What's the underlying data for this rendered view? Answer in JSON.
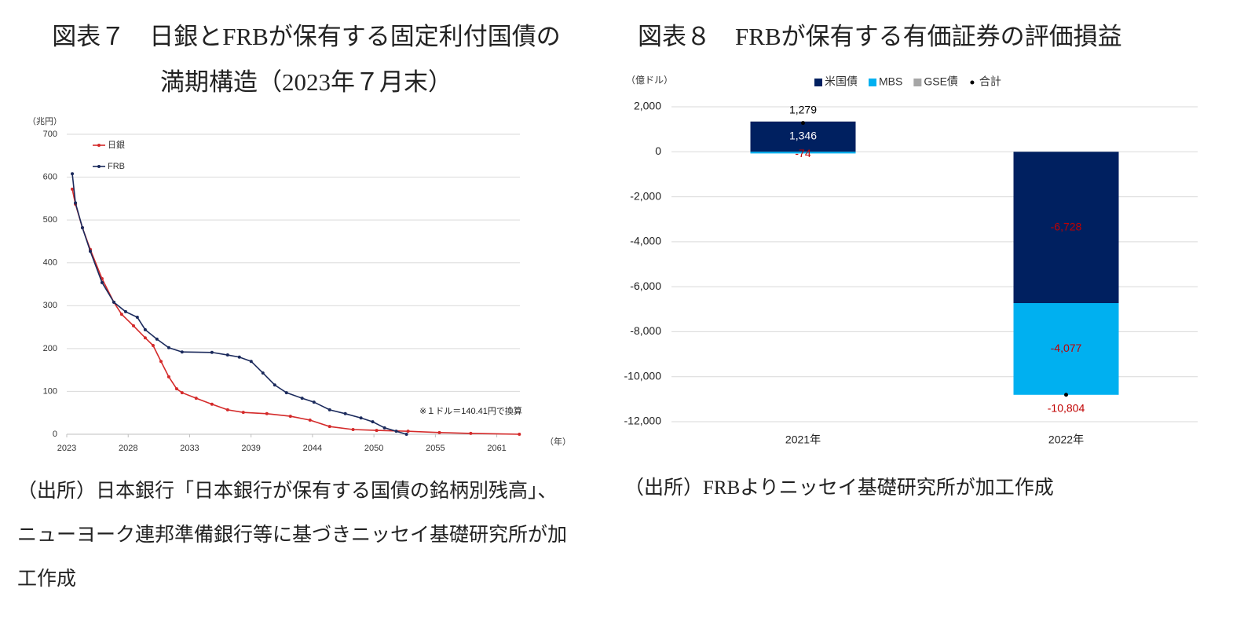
{
  "chart_data": [
    {
      "type": "line",
      "title": "図表７　日銀とFRBが保有する固定利付国債の満期構造（2023年７月末）",
      "y_label": "（兆円）",
      "x_label": "（年）",
      "annotation": "※１ドル＝140.41円で換算",
      "source": "（出所）日本銀行「日本銀行が保有する国債の銘柄別残高」、ニューヨーク連邦準備銀行等に基づきニッセイ基礎研究所が加工作成",
      "xlim": [
        2023,
        2063.2
      ],
      "xticks": [
        2023,
        {
          "value": 2028.45,
          "label": "2028"
        },
        {
          "value": 2033.9,
          "label": "2033"
        },
        {
          "value": 2039.35,
          "label": "2039"
        },
        {
          "value": 2044.8,
          "label": "2044"
        },
        {
          "value": 2050.25,
          "label": "2050"
        },
        {
          "value": 2055.7,
          "label": "2055"
        },
        {
          "value": 2061.15,
          "label": "2061"
        }
      ],
      "ylim": [
        0,
        700
      ],
      "yticks": [
        0,
        100,
        200,
        300,
        400,
        500,
        600,
        700
      ],
      "grid": true,
      "legend": "upper left",
      "series": [
        {
          "name": "日銀",
          "color": "#d42a2a",
          "x": [
            2023.49,
            2023.77,
            2024.39,
            2025.09,
            2026.13,
            2027.18,
            2027.87,
            2028.92,
            2029.96,
            2030.66,
            2031.36,
            2032.05,
            2032.75,
            2033.23,
            2034.48,
            2035.88,
            2037.27,
            2038.66,
            2040.75,
            2042.84,
            2044.58,
            2046.32,
            2048.4,
            2050.49,
            2053.28,
            2056.06,
            2058.84,
            2063.15
          ],
          "values": [
            572,
            537,
            482,
            431,
            363,
            308,
            280,
            253,
            225,
            207,
            170,
            134,
            106,
            97,
            84,
            70,
            57,
            51,
            48,
            42,
            33,
            18,
            11,
            9,
            7,
            4,
            2,
            0
          ]
        },
        {
          "name": "FRB",
          "color": "#1b2a5c",
          "x": [
            2023.49,
            2023.77,
            2024.39,
            2025.09,
            2026.13,
            2027.18,
            2028.22,
            2029.26,
            2029.96,
            2031.0,
            2032.05,
            2033.23,
            2035.88,
            2037.27,
            2038.31,
            2039.36,
            2040.4,
            2041.45,
            2042.49,
            2043.88,
            2044.93,
            2046.32,
            2047.71,
            2049.1,
            2050.14,
            2051.19,
            2052.23,
            2053.14
          ],
          "values": [
            608,
            540,
            482,
            427,
            354,
            308,
            286,
            273,
            244,
            222,
            202,
            192,
            191,
            185,
            180,
            170,
            143,
            115,
            97,
            84,
            75,
            57,
            48,
            38,
            29,
            15,
            7,
            0
          ]
        }
      ]
    },
    {
      "type": "bar",
      "stacked": true,
      "title": "図表８　FRBが保有する有価証券の評価損益",
      "y_label": "（億ドル）",
      "source": "（出所）FRBよりニッセイ基礎研究所が加工作成",
      "categories": [
        "2021年",
        "2022年"
      ],
      "ylim": [
        -12000,
        2000
      ],
      "yticks": [
        {
          "value": -12000,
          "label": "-12,000"
        },
        {
          "value": -10000,
          "label": "-10,000"
        },
        {
          "value": -8000,
          "label": "-8,000"
        },
        {
          "value": -6000,
          "label": "-6,000"
        },
        {
          "value": -4000,
          "label": "-4,000"
        },
        {
          "value": -2000,
          "label": "-2,000"
        },
        0,
        {
          "value": 2000,
          "label": "2,000"
        }
      ],
      "grid": true,
      "legend": "top",
      "series": [
        {
          "name": "米国債",
          "color": "#002060",
          "values": [
            1346,
            -6728
          ],
          "value_labels": [
            "1,346",
            "-6,728"
          ]
        },
        {
          "name": "MBS",
          "color": "#00b0f0",
          "values": [
            -74,
            -4077
          ],
          "value_labels": [
            "-74",
            "-4,077"
          ]
        },
        {
          "name": "GSE債",
          "color": "#a6a6a6",
          "values": [
            7,
            1
          ]
        },
        {
          "name": "合計",
          "type": "scatter",
          "color": "#000000",
          "values": [
            1279,
            -10804
          ],
          "value_labels": [
            "1,279",
            "-10,804"
          ]
        }
      ]
    }
  ]
}
